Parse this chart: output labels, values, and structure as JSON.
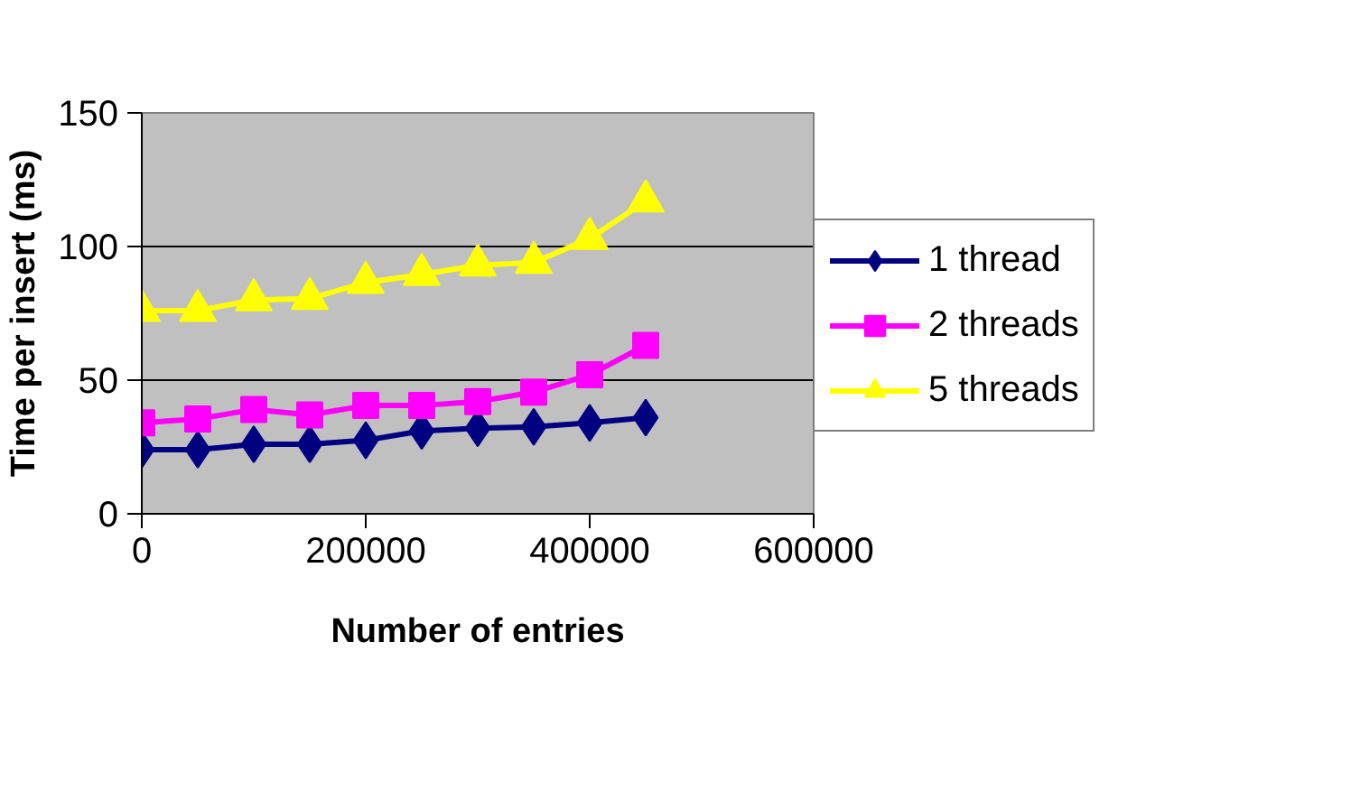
{
  "chart_data": {
    "type": "line",
    "xlabel": "Number of entries",
    "ylabel": "Time per insert (ms)",
    "x": [
      0,
      50000,
      100000,
      150000,
      200000,
      250000,
      300000,
      350000,
      400000,
      450000
    ],
    "xlim": [
      0,
      600000
    ],
    "xticks": [
      0,
      200000,
      400000,
      600000
    ],
    "ylim": [
      0,
      150
    ],
    "yticks": [
      0,
      50,
      100,
      150
    ],
    "grid": "y",
    "legend": "right",
    "series": [
      {
        "name": "1 thread",
        "color": "#000080",
        "marker": "diamond",
        "values": [
          24,
          24,
          26,
          26,
          27.5,
          31,
          32,
          32.5,
          34,
          36
        ]
      },
      {
        "name": "2 threads",
        "color": "#ff00ff",
        "marker": "square",
        "values": [
          34,
          35.5,
          39,
          37,
          40.5,
          40.5,
          42,
          45.5,
          52,
          63
        ]
      },
      {
        "name": "5 threads",
        "color": "#ffff00",
        "marker": "triangle",
        "values": [
          76,
          76,
          80,
          80.5,
          86.5,
          89.5,
          93,
          94,
          103,
          117
        ]
      }
    ]
  }
}
